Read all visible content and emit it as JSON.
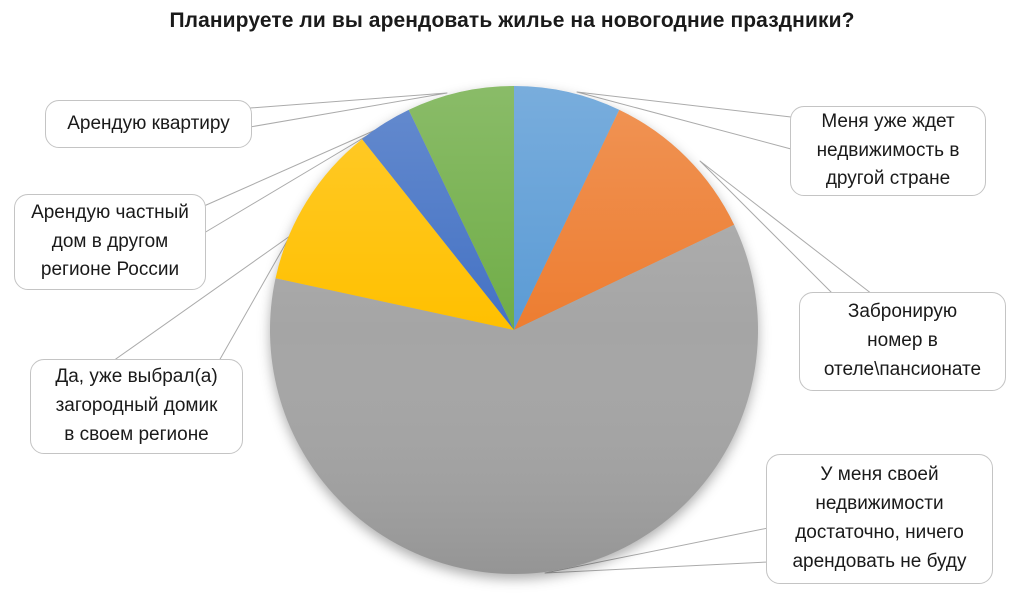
{
  "chart_data": {
    "type": "pie",
    "title": "Планируете ли вы арендовать жилье на новогодние праздники?",
    "legend_position": "callout-labels-around-pie",
    "start_angle_deg": 0,
    "direction": "clockwise",
    "units": "percent (estimated from slice angles, no data labels shown)",
    "slices": [
      {
        "label": "Меня уже ждет недвижимость в другой стране",
        "display_text": "Меня уже ждет\nнедвижимость в\nдругой стране",
        "value": 7.1,
        "color": "#5B9BD5"
      },
      {
        "label": "Забронирую номер в отеле\\пансионате",
        "display_text": "Забронирую\nномер в\nотеле\\пансионате",
        "value": 10.8,
        "color": "#ED7D31"
      },
      {
        "label": "У меня своей недвижимости достаточно, ничего арендовать не буду",
        "display_text": "У меня своей\nнедвижимости\nдостаточно, ничего\nарендовать не буду",
        "value": 60.5,
        "color": "#A5A5A5"
      },
      {
        "label": "Да, уже выбрал(а) загородный домик в своем регионе",
        "display_text": "Да, уже выбрал(а)\nзагородный домик\nв своем регионе",
        "value": 10.9,
        "color": "#FFC000"
      },
      {
        "label": "Арендую частный дом в другом регионе России",
        "display_text": "Арендую частный\nдом в другом\nрегионе России",
        "value": 3.6,
        "color": "#4472C4"
      },
      {
        "label": "Арендую квартиру",
        "display_text": "Арендую квартиру",
        "value": 7.1,
        "color": "#70AD47"
      }
    ]
  }
}
